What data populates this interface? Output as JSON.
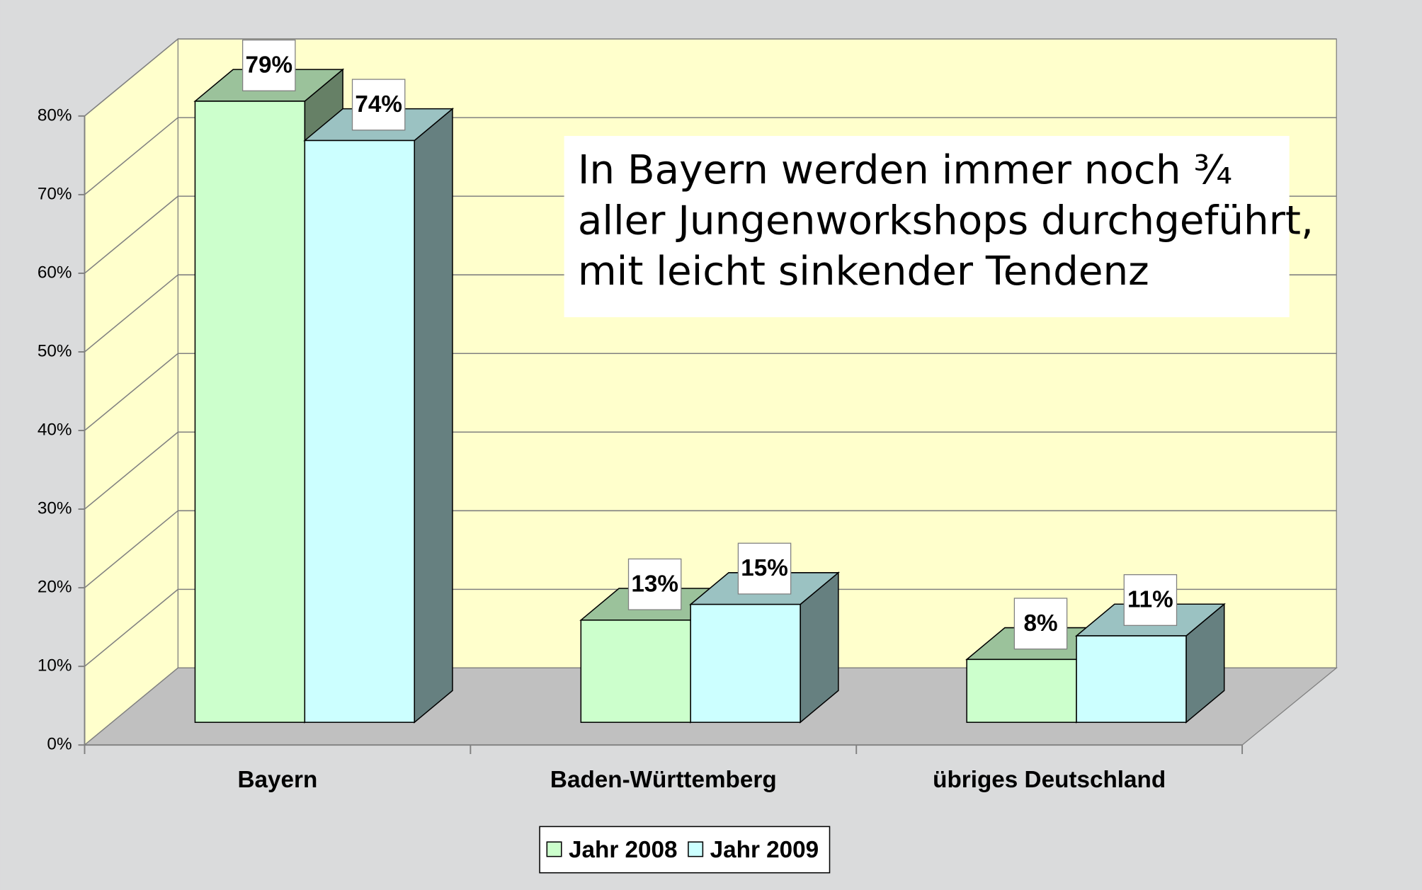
{
  "chart_data": {
    "type": "bar3d",
    "categories": [
      "Bayern",
      "Baden-Württemberg",
      "übriges Deutschland"
    ],
    "series": [
      {
        "name": "Jahr 2008",
        "color": "#ccffcc",
        "values": [
          79,
          13,
          8
        ],
        "value_labels": [
          "79%",
          "13%",
          "8%"
        ]
      },
      {
        "name": "Jahr 2009",
        "color": "#ccffff",
        "values": [
          74,
          15,
          11
        ],
        "value_labels": [
          "74%",
          "15%",
          "11%"
        ]
      }
    ],
    "ylim": [
      0,
      80
    ],
    "yticks": [
      {
        "value": 0,
        "label": "0%"
      },
      {
        "value": 10,
        "label": "10%"
      },
      {
        "value": 20,
        "label": "20%"
      },
      {
        "value": 30,
        "label": "30%"
      },
      {
        "value": 40,
        "label": "40%"
      },
      {
        "value": 50,
        "label": "50%"
      },
      {
        "value": 60,
        "label": "60%"
      },
      {
        "value": 70,
        "label": "70%"
      },
      {
        "value": 80,
        "label": "80%"
      }
    ],
    "grid": true,
    "legend": "bottom",
    "annotation": [
      "In Bayern werden immer noch ¾",
      "aller Jungenworkshops durchgeführt,",
      "mit leicht sinkender Tendenz"
    ]
  }
}
